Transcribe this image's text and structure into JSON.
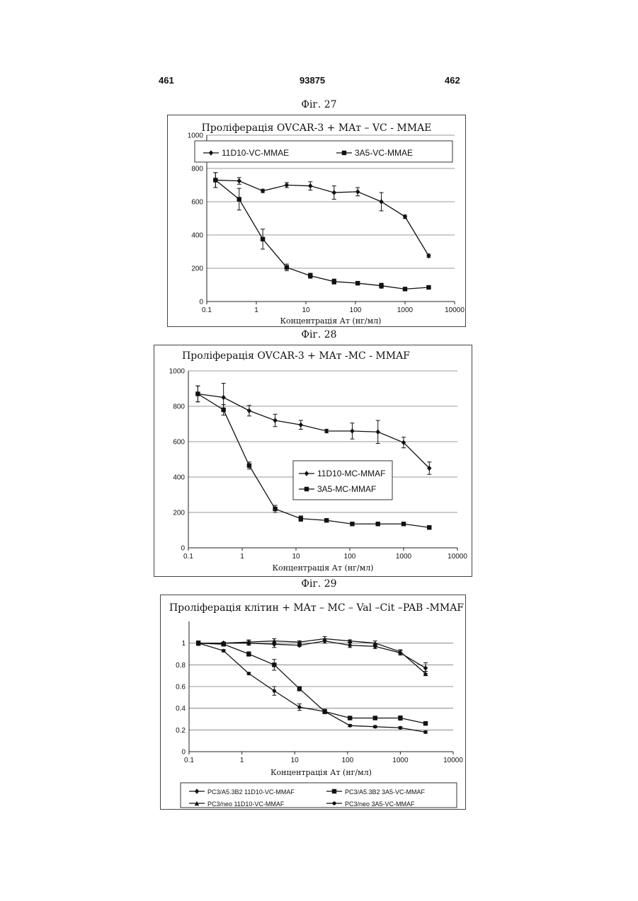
{
  "header": {
    "left": "461",
    "center": "93875",
    "right": "462"
  },
  "figures": [
    {
      "label": "Фіг. 27"
    },
    {
      "label": "Фіг. 28"
    },
    {
      "label": "Фіг. 29"
    }
  ],
  "chart_data": [
    {
      "type": "line",
      "title": "Проліферація OVCAR-3 + MAт – VC - MMAE",
      "xlabel": "Концентрація Ат (нг/мл)",
      "ylabel": "",
      "x_scale": "log",
      "xlim": [
        0.1,
        10000
      ],
      "ylim": [
        0,
        1000
      ],
      "x_ticks": [
        "0.1",
        "1",
        "10",
        "100",
        "1000",
        "10000"
      ],
      "y_ticks": [
        "0",
        "200",
        "400",
        "600",
        "800",
        "1000"
      ],
      "grid": true,
      "legend_position": "top",
      "x": [
        0.15,
        0.45,
        1.35,
        4.1,
        12.3,
        37,
        111,
        333,
        1000,
        3000
      ],
      "series": [
        {
          "name": "11D10-VC-MMAE",
          "marker": "diamond",
          "values": [
            730,
            725,
            665,
            700,
            695,
            655,
            660,
            600,
            510,
            275
          ],
          "errors": [
            45,
            20,
            10,
            15,
            25,
            40,
            25,
            55,
            10,
            10
          ]
        },
        {
          "name": "3A5-VC-MMAE",
          "marker": "square",
          "values": [
            730,
            615,
            375,
            205,
            155,
            120,
            110,
            95,
            75,
            85
          ],
          "errors": [
            45,
            65,
            60,
            20,
            15,
            15,
            10,
            15,
            8,
            8
          ]
        }
      ]
    },
    {
      "type": "line",
      "title": "Проліферація OVCAR-3 + MAт -MC - MMAF",
      "xlabel": "Концентрація Ат (нг/мл)",
      "ylabel": "",
      "x_scale": "log",
      "xlim": [
        0.1,
        10000
      ],
      "ylim": [
        0,
        1000
      ],
      "x_ticks": [
        "0.1",
        "1",
        "10",
        "100",
        "1000",
        "10000"
      ],
      "y_ticks": [
        "0",
        "200",
        "400",
        "600",
        "800",
        "1000"
      ],
      "grid": true,
      "legend_position": "center-right",
      "x": [
        0.15,
        0.45,
        1.35,
        4.1,
        12.3,
        37,
        111,
        333,
        1000,
        3000
      ],
      "series": [
        {
          "name": "11D10-MC-MMAF",
          "marker": "diamond",
          "values": [
            870,
            850,
            775,
            720,
            695,
            660,
            660,
            655,
            595,
            450
          ],
          "errors": [
            45,
            80,
            30,
            35,
            25,
            10,
            45,
            65,
            30,
            35
          ]
        },
        {
          "name": "3A5-MC-MMAF",
          "marker": "square",
          "values": [
            870,
            780,
            465,
            220,
            165,
            155,
            135,
            135,
            135,
            115
          ],
          "errors": [
            45,
            30,
            20,
            20,
            15,
            8,
            8,
            8,
            8,
            10
          ]
        }
      ]
    },
    {
      "type": "line",
      "title": "Проліферація клітин + MAт – MC – Val –Cit –PAB -MMAF",
      "xlabel": "Концентрація Ат (нг/мл)",
      "ylabel": "",
      "x_scale": "log",
      "xlim": [
        0.1,
        10000
      ],
      "ylim": [
        0,
        1.2
      ],
      "x_ticks": [
        "0.1",
        "1",
        "10",
        "100",
        "1000",
        "10000"
      ],
      "y_ticks": [
        "0",
        "0.2",
        "0.4",
        "0.6",
        "0.8",
        "1"
      ],
      "grid": true,
      "legend_position": "bottom",
      "x": [
        0.15,
        0.45,
        1.35,
        4.1,
        12.3,
        37,
        111,
        333,
        1000,
        3000
      ],
      "series": [
        {
          "name": "PC3/A5.3B2 11D10-VC-MMAF",
          "marker": "diamond",
          "values": [
            1.0,
            1.0,
            1.0,
            0.99,
            0.98,
            1.02,
            0.98,
            0.97,
            0.91,
            0.77
          ],
          "errors": [
            0.02,
            0.01,
            0.02,
            0.03,
            0.01,
            0.02,
            0.02,
            0.02,
            0.02,
            0.05
          ]
        },
        {
          "name": "PC3/A5.3B2 3A5-VC-MMAF",
          "marker": "square",
          "values": [
            1.0,
            0.99,
            0.9,
            0.8,
            0.58,
            0.37,
            0.31,
            0.31,
            0.31,
            0.26
          ],
          "errors": [
            0.02,
            0.01,
            0.02,
            0.05,
            0.02,
            0.02,
            0.01,
            0.01,
            0.02,
            0.01
          ]
        },
        {
          "name": "PC3/neo 11D10-VC-MMAF",
          "marker": "triangle",
          "values": [
            1.0,
            1.0,
            1.01,
            1.02,
            1.01,
            1.04,
            1.02,
            1.0,
            0.92,
            0.72
          ],
          "errors": [
            0.02,
            0.01,
            0.02,
            0.02,
            0.01,
            0.02,
            0.01,
            0.02,
            0.02,
            0.02
          ]
        },
        {
          "name": "PC3/neo 3A5-VC-MMAF",
          "marker": "circle",
          "values": [
            1.0,
            0.93,
            0.72,
            0.56,
            0.41,
            0.37,
            0.24,
            0.23,
            0.22,
            0.18
          ],
          "errors": [
            0.02,
            0.01,
            0.01,
            0.04,
            0.03,
            0.02,
            0.01,
            0.01,
            0.01,
            0.01
          ]
        }
      ]
    }
  ]
}
